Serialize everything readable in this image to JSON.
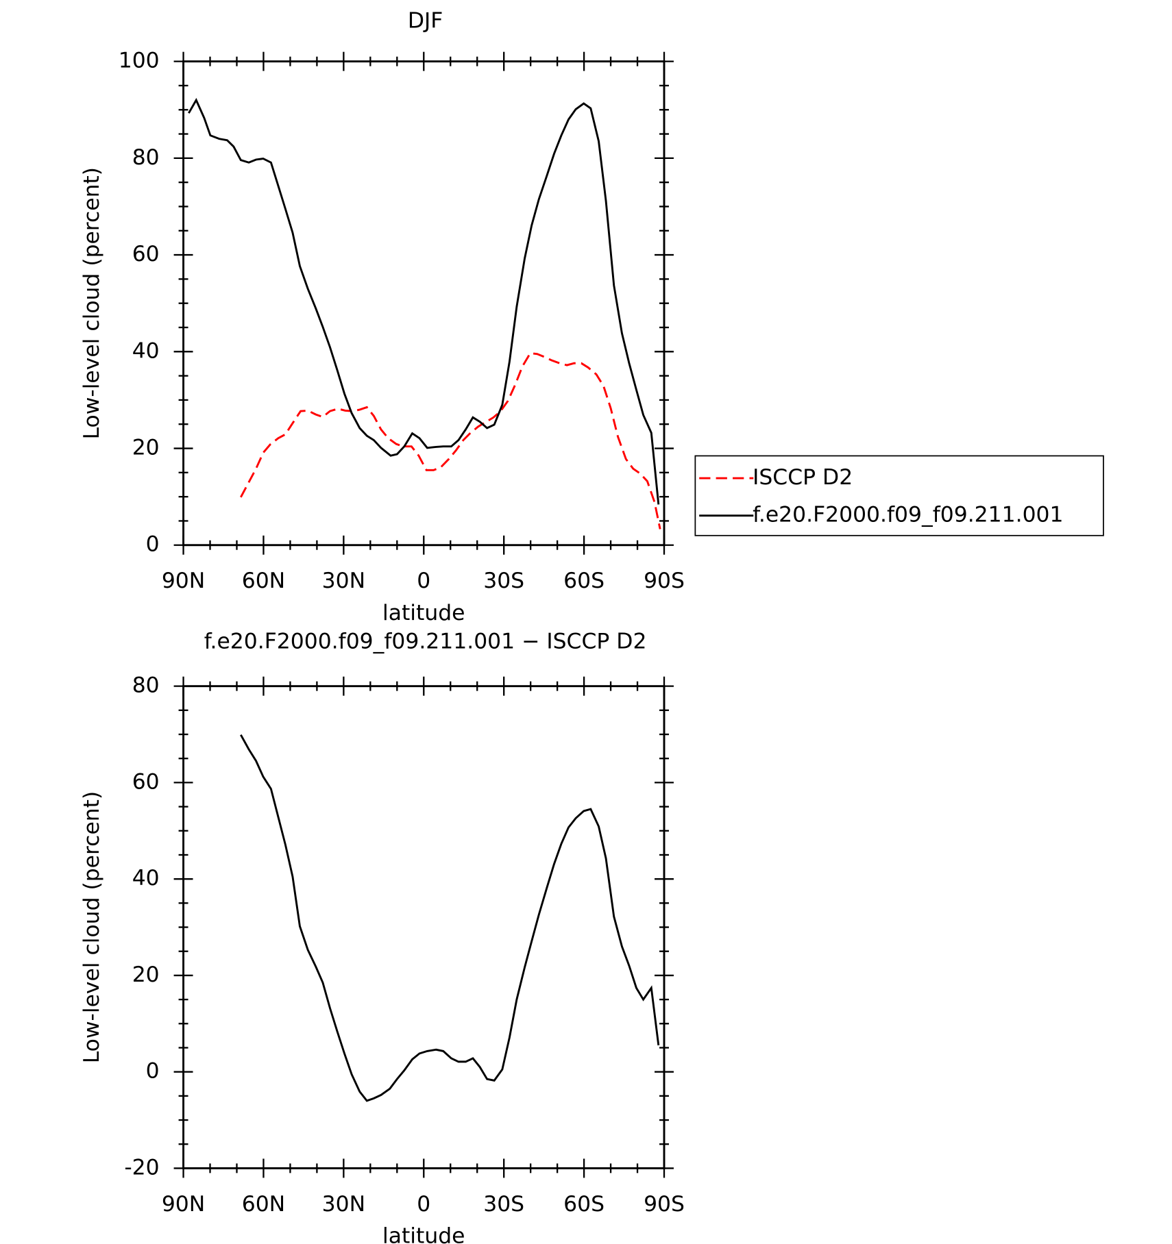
{
  "chart_data": [
    {
      "type": "line",
      "title": "DJF",
      "xlabel": "latitude",
      "ylabel": "Low-level cloud (percent)",
      "xlim": [
        90,
        -90
      ],
      "xticks": [
        {
          "value": 90,
          "label": "90N"
        },
        {
          "value": 60,
          "label": "60N"
        },
        {
          "value": 30,
          "label": "30N"
        },
        0,
        {
          "value": -30,
          "label": "30S"
        },
        {
          "value": -60,
          "label": "60S"
        },
        {
          "value": -90,
          "label": "90S"
        }
      ],
      "ylim": [
        0,
        100
      ],
      "yticks": [
        0,
        20,
        40,
        60,
        80,
        100
      ],
      "legend": "right",
      "series": [
        {
          "name": "ISCCP D2",
          "color": "#ff0000",
          "dash": true,
          "x": [
            68.5,
            65.8,
            62.8,
            60.1,
            57.5,
            54.5,
            51.8,
            49.1,
            46.1,
            43.4,
            40.4,
            37.8,
            35.1,
            32.1,
            29.4,
            26.7,
            24,
            21.3,
            18.7,
            16,
            13.3,
            10.3,
            7.6,
            4.6,
            1.9,
            -1,
            -3.7,
            -6.4,
            -9.4,
            -12.1,
            -14.8,
            -17.5,
            -20.4,
            -23.1,
            -26.1,
            -28.8,
            -31.5,
            -34.2,
            -36.9,
            -39.9,
            -42.5,
            -45.2,
            -47.9,
            -50.9,
            -53.6,
            -56.3,
            -59,
            -61.6,
            -64.6,
            -67.3,
            -70,
            -72.7,
            -75.7,
            -78.4,
            -81,
            -83.7,
            -86.4,
            -88.5
          ],
          "values": [
            9.9,
            12.7,
            15.8,
            19.1,
            20.8,
            22.1,
            22.9,
            25.2,
            27.7,
            27.8,
            27,
            26.5,
            27.7,
            28.2,
            27.8,
            27.7,
            28,
            28.5,
            26.7,
            23.9,
            22.1,
            20.9,
            20.4,
            20.4,
            18.5,
            15.5,
            15.5,
            16.1,
            17.8,
            19.6,
            21.7,
            23.2,
            24.5,
            25.4,
            26.4,
            27.7,
            29.8,
            33.1,
            36.9,
            39.7,
            39.5,
            38.9,
            38.2,
            37.6,
            37.2,
            37.6,
            37.6,
            36.7,
            35.3,
            32.9,
            28.3,
            22.4,
            17.8,
            15.8,
            14.8,
            13.2,
            8.9,
            3.3
          ]
        },
        {
          "name": "f.e20.F2000.f09_f09.211.001",
          "color": "#000000",
          "dash": false,
          "x": [
            88,
            85.2,
            82.2,
            79.9,
            76.6,
            73.6,
            71.2,
            68.5,
            65.5,
            62.8,
            60.1,
            57.2,
            54.5,
            51.8,
            49.1,
            46.4,
            43.4,
            40.4,
            37.8,
            35.1,
            32.4,
            29.7,
            27,
            24,
            21.3,
            18.7,
            16,
            12.4,
            10,
            7.3,
            4.3,
            1.6,
            -1.3,
            -4.6,
            -7.3,
            -10.3,
            -13,
            -15.7,
            -18.4,
            -21,
            -23.7,
            -26.4,
            -29.4,
            -32.1,
            -34.8,
            -37.8,
            -40.4,
            -43.1,
            -46.1,
            -48.8,
            -51.5,
            -54.2,
            -56.9,
            -59.9,
            -62.5,
            -65.5,
            -68.2,
            -71.2,
            -74.2,
            -76.9,
            -79.6,
            -82.2,
            -85.2,
            -87.9
          ],
          "values": [
            89.3,
            92,
            88.3,
            84.7,
            84,
            83.7,
            82.4,
            79.6,
            79.1,
            79.7,
            79.9,
            79.1,
            74.3,
            69.5,
            64.6,
            57.7,
            53,
            48.9,
            45.1,
            40.9,
            36.2,
            31.3,
            27.3,
            24.2,
            22.6,
            21.7,
            20.1,
            18.5,
            18.8,
            20.4,
            23.1,
            22.1,
            20.1,
            20.3,
            20.4,
            20.4,
            21.7,
            23.9,
            26.4,
            25.5,
            24.2,
            24.9,
            29,
            37.9,
            49.3,
            59.3,
            66.1,
            71.5,
            76.4,
            80.9,
            84.7,
            88,
            90.1,
            91.3,
            90.3,
            83.5,
            71.2,
            53.7,
            43.8,
            37.6,
            32.1,
            26.9,
            23.2,
            8.4
          ]
        }
      ]
    },
    {
      "type": "line",
      "title": "f.e20.F2000.f09_f09.211.001 − ISCCP D2",
      "xlabel": "latitude",
      "ylabel": "Low-level cloud (percent)",
      "xlim": [
        90,
        -90
      ],
      "xticks": [
        {
          "value": 90,
          "label": "90N"
        },
        {
          "value": 60,
          "label": "60N"
        },
        {
          "value": 30,
          "label": "30N"
        },
        0,
        {
          "value": -30,
          "label": "30S"
        },
        {
          "value": -60,
          "label": "60S"
        },
        {
          "value": -90,
          "label": "90S"
        }
      ],
      "ylim": [
        -20,
        80
      ],
      "yticks": [
        -20,
        0,
        20,
        40,
        60,
        80
      ],
      "series": [
        {
          "color": "#000000",
          "dash": false,
          "x": [
            68.5,
            65.5,
            62.8,
            60.1,
            57.2,
            54.5,
            51.8,
            49.1,
            46.4,
            43.4,
            40.4,
            37.8,
            35.1,
            32.4,
            29.7,
            27,
            24,
            21.3,
            18.7,
            16,
            12.7,
            10,
            7.3,
            4.3,
            1.6,
            -1.3,
            -4.6,
            -7.3,
            -10.3,
            -13,
            -15.7,
            -18.4,
            -21,
            -23.7,
            -26.4,
            -29.4,
            -32.1,
            -34.8,
            -37.8,
            -40.4,
            -43.1,
            -46.1,
            -48.8,
            -51.5,
            -54.2,
            -56.9,
            -59.9,
            -62.5,
            -65.5,
            -68.2,
            -71.2,
            -74.2,
            -76.9,
            -79.6,
            -82.2,
            -85.2,
            -87.9
          ],
          "values": [
            69.9,
            66.9,
            64.5,
            61.2,
            58.7,
            52.9,
            47.1,
            40.5,
            30.2,
            25.3,
            21.8,
            18.5,
            13.2,
            8.4,
            3.8,
            -0.5,
            -4.1,
            -6,
            -5.5,
            -4.8,
            -3.5,
            -1.5,
            0.3,
            2.6,
            3.8,
            4.3,
            4.6,
            4.3,
            2.8,
            2.1,
            2.1,
            2.8,
            1,
            -1.5,
            -1.8,
            0.5,
            7.1,
            15,
            21.7,
            27.1,
            32.6,
            38.2,
            43.1,
            47.3,
            50.7,
            52.6,
            54.1,
            54.5,
            50.9,
            44.3,
            32.2,
            26,
            22,
            17.4,
            15,
            17.4,
            5.5
          ]
        }
      ]
    }
  ]
}
